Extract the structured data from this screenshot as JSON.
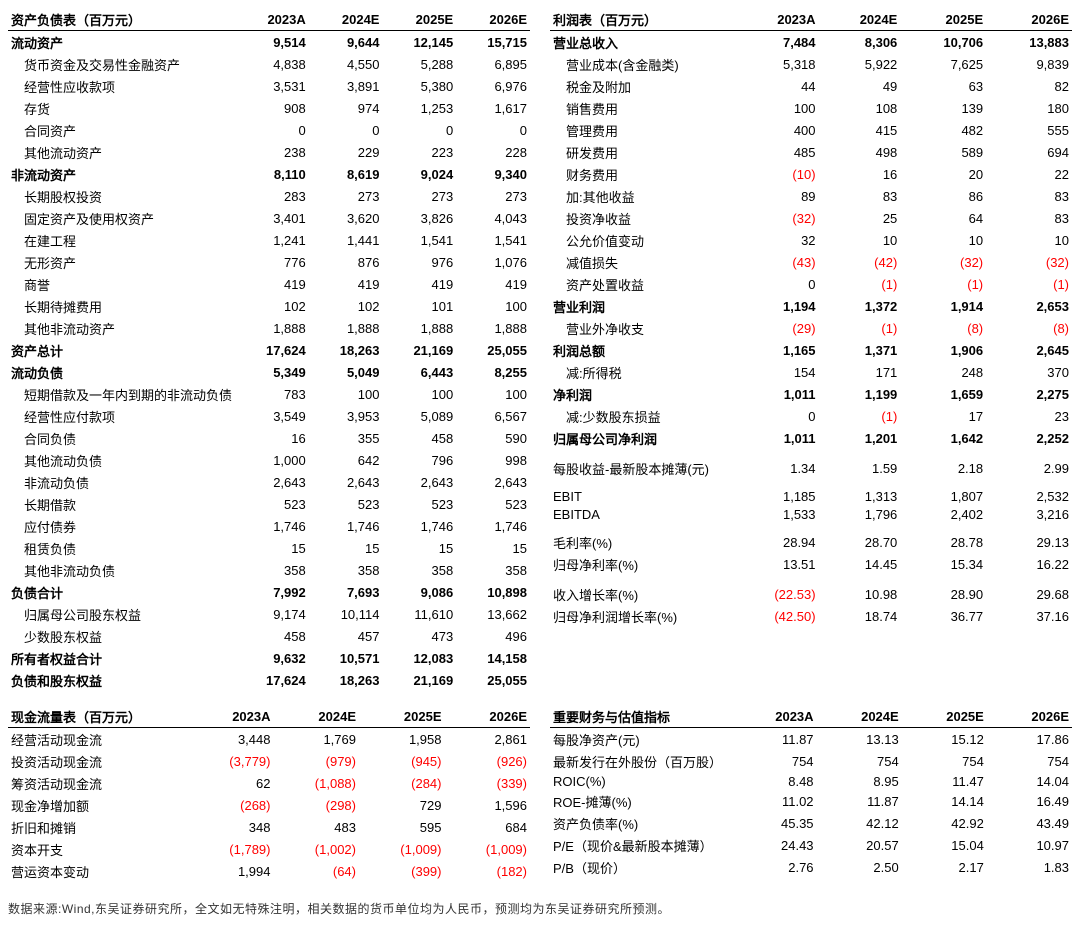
{
  "periods": [
    "2023A",
    "2024E",
    "2025E",
    "2026E"
  ],
  "balance_sheet": {
    "title": "资产负债表（百万元）",
    "rows": [
      {
        "label": "流动资产",
        "v": [
          "9,514",
          "9,644",
          "12,145",
          "15,715"
        ],
        "bold": true
      },
      {
        "label": "货币资金及交易性金融资产",
        "v": [
          "4,838",
          "4,550",
          "5,288",
          "6,895"
        ],
        "indent": true
      },
      {
        "label": "经营性应收款项",
        "v": [
          "3,531",
          "3,891",
          "5,380",
          "6,976"
        ],
        "indent": true
      },
      {
        "label": "存货",
        "v": [
          "908",
          "974",
          "1,253",
          "1,617"
        ],
        "indent": true
      },
      {
        "label": "合同资产",
        "v": [
          "0",
          "0",
          "0",
          "0"
        ],
        "indent": true
      },
      {
        "label": "其他流动资产",
        "v": [
          "238",
          "229",
          "223",
          "228"
        ],
        "indent": true
      },
      {
        "label": "非流动资产",
        "v": [
          "8,110",
          "8,619",
          "9,024",
          "9,340"
        ],
        "bold": true
      },
      {
        "label": "长期股权投资",
        "v": [
          "283",
          "273",
          "273",
          "273"
        ],
        "indent": true
      },
      {
        "label": "固定资产及使用权资产",
        "v": [
          "3,401",
          "3,620",
          "3,826",
          "4,043"
        ],
        "indent": true
      },
      {
        "label": "在建工程",
        "v": [
          "1,241",
          "1,441",
          "1,541",
          "1,541"
        ],
        "indent": true
      },
      {
        "label": "无形资产",
        "v": [
          "776",
          "876",
          "976",
          "1,076"
        ],
        "indent": true
      },
      {
        "label": "商誉",
        "v": [
          "419",
          "419",
          "419",
          "419"
        ],
        "indent": true
      },
      {
        "label": "长期待摊费用",
        "v": [
          "102",
          "102",
          "101",
          "100"
        ],
        "indent": true
      },
      {
        "label": "其他非流动资产",
        "v": [
          "1,888",
          "1,888",
          "1,888",
          "1,888"
        ],
        "indent": true
      },
      {
        "label": "资产总计",
        "v": [
          "17,624",
          "18,263",
          "21,169",
          "25,055"
        ],
        "bold": true
      },
      {
        "label": "流动负债",
        "v": [
          "5,349",
          "5,049",
          "6,443",
          "8,255"
        ],
        "bold": true
      },
      {
        "label": "短期借款及一年内到期的非流动负债",
        "v": [
          "783",
          "100",
          "100",
          "100"
        ],
        "indent": true
      },
      {
        "label": "经营性应付款项",
        "v": [
          "3,549",
          "3,953",
          "5,089",
          "6,567"
        ],
        "indent": true
      },
      {
        "label": "合同负债",
        "v": [
          "16",
          "355",
          "458",
          "590"
        ],
        "indent": true
      },
      {
        "label": "其他流动负债",
        "v": [
          "1,000",
          "642",
          "796",
          "998"
        ],
        "indent": true
      },
      {
        "label": "非流动负债",
        "v": [
          "2,643",
          "2,643",
          "2,643",
          "2,643"
        ],
        "indent": true
      },
      {
        "label": "长期借款",
        "v": [
          "523",
          "523",
          "523",
          "523"
        ],
        "indent": true
      },
      {
        "label": "应付债券",
        "v": [
          "1,746",
          "1,746",
          "1,746",
          "1,746"
        ],
        "indent": true
      },
      {
        "label": "租赁负债",
        "v": [
          "15",
          "15",
          "15",
          "15"
        ],
        "indent": true
      },
      {
        "label": "其他非流动负债",
        "v": [
          "358",
          "358",
          "358",
          "358"
        ],
        "indent": true
      },
      {
        "label": "负债合计",
        "v": [
          "7,992",
          "7,693",
          "9,086",
          "10,898"
        ],
        "bold": true
      },
      {
        "label": "归属母公司股东权益",
        "v": [
          "9,174",
          "10,114",
          "11,610",
          "13,662"
        ],
        "indent": true
      },
      {
        "label": "少数股东权益",
        "v": [
          "458",
          "457",
          "473",
          "496"
        ],
        "indent": true
      },
      {
        "label": "所有者权益合计",
        "v": [
          "9,632",
          "10,571",
          "12,083",
          "14,158"
        ],
        "bold": true
      },
      {
        "label": "负债和股东权益",
        "v": [
          "17,624",
          "18,263",
          "21,169",
          "25,055"
        ],
        "bold": true
      }
    ]
  },
  "income": {
    "title": "利润表（百万元）",
    "rows": [
      {
        "label": "营业总收入",
        "v": [
          "7,484",
          "8,306",
          "10,706",
          "13,883"
        ],
        "bold": true
      },
      {
        "label": "营业成本(含金融类)",
        "v": [
          "5,318",
          "5,922",
          "7,625",
          "9,839"
        ],
        "indent": true
      },
      {
        "label": "税金及附加",
        "v": [
          "44",
          "49",
          "63",
          "82"
        ],
        "indent": true
      },
      {
        "label": "销售费用",
        "v": [
          "100",
          "108",
          "139",
          "180"
        ],
        "indent": true
      },
      {
        "label": "管理费用",
        "v": [
          "400",
          "415",
          "482",
          "555"
        ],
        "indent": true
      },
      {
        "label": "研发费用",
        "v": [
          "485",
          "498",
          "589",
          "694"
        ],
        "indent": true
      },
      {
        "label": "财务费用",
        "v": [
          "(10)",
          "16",
          "20",
          "22"
        ],
        "indent": true,
        "neg": [
          true,
          false,
          false,
          false
        ]
      },
      {
        "label": "加:其他收益",
        "v": [
          "89",
          "83",
          "86",
          "83"
        ],
        "indent": true
      },
      {
        "label": "投资净收益",
        "v": [
          "(32)",
          "25",
          "64",
          "83"
        ],
        "indent": true,
        "neg": [
          true,
          false,
          false,
          false
        ]
      },
      {
        "label": "公允价值变动",
        "v": [
          "32",
          "10",
          "10",
          "10"
        ],
        "indent": true
      },
      {
        "label": "减值损失",
        "v": [
          "(43)",
          "(42)",
          "(32)",
          "(32)"
        ],
        "indent": true,
        "neg": [
          true,
          true,
          true,
          true
        ]
      },
      {
        "label": "资产处置收益",
        "v": [
          "0",
          "(1)",
          "(1)",
          "(1)"
        ],
        "indent": true,
        "neg": [
          false,
          true,
          true,
          true
        ]
      },
      {
        "label": "营业利润",
        "v": [
          "1,194",
          "1,372",
          "1,914",
          "2,653"
        ],
        "bold": true
      },
      {
        "label": "营业外净收支",
        "v": [
          "(29)",
          "(1)",
          "(8)",
          "(8)"
        ],
        "indent": true,
        "neg": [
          true,
          true,
          true,
          true
        ]
      },
      {
        "label": "利润总额",
        "v": [
          "1,165",
          "1,371",
          "1,906",
          "2,645"
        ],
        "bold": true
      },
      {
        "label": "减:所得税",
        "v": [
          "154",
          "171",
          "248",
          "370"
        ],
        "indent": true
      },
      {
        "label": "净利润",
        "v": [
          "1,011",
          "1,199",
          "1,659",
          "2,275"
        ],
        "bold": true
      },
      {
        "label": "减:少数股东损益",
        "v": [
          "0",
          "(1)",
          "17",
          "23"
        ],
        "indent": true,
        "neg": [
          false,
          true,
          false,
          false
        ]
      },
      {
        "label": "归属母公司净利润",
        "v": [
          "1,011",
          "1,201",
          "1,642",
          "2,252"
        ],
        "bold": true
      },
      {
        "spacer": true
      },
      {
        "label": "每股收益-最新股本摊薄(元)",
        "v": [
          "1.34",
          "1.59",
          "2.18",
          "2.99"
        ]
      },
      {
        "spacer": true
      },
      {
        "label": "EBIT",
        "v": [
          "1,185",
          "1,313",
          "1,807",
          "2,532"
        ]
      },
      {
        "label": "EBITDA",
        "v": [
          "1,533",
          "1,796",
          "2,402",
          "3,216"
        ]
      },
      {
        "spacer": true
      },
      {
        "label": "毛利率(%)",
        "v": [
          "28.94",
          "28.70",
          "28.78",
          "29.13"
        ]
      },
      {
        "label": "归母净利率(%)",
        "v": [
          "13.51",
          "14.45",
          "15.34",
          "16.22"
        ]
      },
      {
        "spacer": true
      },
      {
        "label": "收入增长率(%)",
        "v": [
          "(22.53)",
          "10.98",
          "28.90",
          "29.68"
        ],
        "neg": [
          true,
          false,
          false,
          false
        ]
      },
      {
        "label": "归母净利润增长率(%)",
        "v": [
          "(42.50)",
          "18.74",
          "36.77",
          "37.16"
        ],
        "neg": [
          true,
          false,
          false,
          false
        ]
      }
    ]
  },
  "cashflow": {
    "title": "现金流量表（百万元）",
    "rows": [
      {
        "label": "经营活动现金流",
        "v": [
          "3,448",
          "1,769",
          "1,958",
          "2,861"
        ]
      },
      {
        "label": "投资活动现金流",
        "v": [
          "(3,779)",
          "(979)",
          "(945)",
          "(926)"
        ],
        "neg": [
          true,
          true,
          true,
          true
        ]
      },
      {
        "label": "筹资活动现金流",
        "v": [
          "62",
          "(1,088)",
          "(284)",
          "(339)"
        ],
        "neg": [
          false,
          true,
          true,
          true
        ]
      },
      {
        "label": "现金净增加额",
        "v": [
          "(268)",
          "(298)",
          "729",
          "1,596"
        ],
        "neg": [
          true,
          true,
          false,
          false
        ]
      },
      {
        "label": "折旧和摊销",
        "v": [
          "348",
          "483",
          "595",
          "684"
        ]
      },
      {
        "label": "资本开支",
        "v": [
          "(1,789)",
          "(1,002)",
          "(1,009)",
          "(1,009)"
        ],
        "neg": [
          true,
          true,
          true,
          true
        ]
      },
      {
        "label": "营运资本变动",
        "v": [
          "1,994",
          "(64)",
          "(399)",
          "(182)"
        ],
        "neg": [
          false,
          true,
          true,
          true
        ]
      }
    ]
  },
  "metrics": {
    "title": "重要财务与估值指标",
    "rows": [
      {
        "label": "每股净资产(元)",
        "v": [
          "11.87",
          "13.13",
          "15.12",
          "17.86"
        ]
      },
      {
        "label": "最新发行在外股份（百万股）",
        "v": [
          "754",
          "754",
          "754",
          "754"
        ]
      },
      {
        "label": "ROIC(%)",
        "v": [
          "8.48",
          "8.95",
          "11.47",
          "14.04"
        ]
      },
      {
        "label": "ROE-摊薄(%)",
        "v": [
          "11.02",
          "11.87",
          "14.14",
          "16.49"
        ]
      },
      {
        "label": "资产负债率(%)",
        "v": [
          "45.35",
          "42.12",
          "42.92",
          "43.49"
        ]
      },
      {
        "label": "P/E（现价&最新股本摊薄）",
        "v": [
          "24.43",
          "20.57",
          "15.04",
          "10.97"
        ]
      },
      {
        "label": "P/B（现价）",
        "v": [
          "2.76",
          "2.50",
          "2.17",
          "1.83"
        ]
      }
    ]
  },
  "footnote": "数据来源:Wind,东吴证券研究所，全文如无特殊注明，相关数据的货币单位均为人民币，预测均为东吴证券研究所预测。"
}
